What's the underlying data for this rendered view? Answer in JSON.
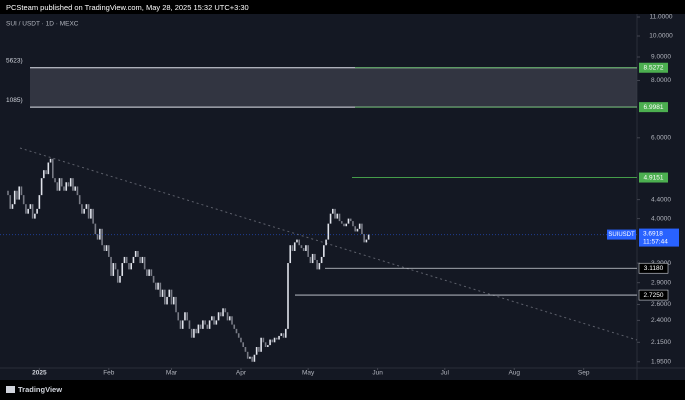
{
  "header": "PCSteam published on TradingView.com, May 28, 2025 15:32 UTC+3:30",
  "footer": "TradingView",
  "chart_data": {
    "type": "candlestick",
    "symbol_line": "SUI / USDT · 1D · MEXC",
    "start": "2024-12-18",
    "up_color": "#e0e3eb",
    "down_color": "#787b86",
    "log_scale": true,
    "ylim": [
      1.89,
      11.98
    ],
    "yticks": [
      {
        "value": 11,
        "label": "11.0000"
      },
      {
        "value": 10,
        "label": "10.0000"
      },
      {
        "value": 9,
        "label": "9.0000"
      },
      {
        "value": 8,
        "label": "8.0000"
      },
      {
        "value": 6,
        "label": "6.0000"
      },
      {
        "value": 4.4,
        "label": "4.4000"
      },
      {
        "value": 4,
        "label": "4.0000"
      },
      {
        "value": 3.2,
        "label": "3.2000"
      },
      {
        "value": 2.9,
        "label": "2.9000"
      },
      {
        "value": 2.6,
        "label": "2.6000"
      },
      {
        "value": 2.4,
        "label": "2.4000"
      },
      {
        "value": 2.15,
        "label": "2.1500"
      },
      {
        "value": 1.95,
        "label": "1.9500"
      }
    ],
    "xticks": [
      {
        "value": "2025-01-01",
        "label": "2025"
      },
      {
        "value": "2025-02-01",
        "label": "Feb"
      },
      {
        "value": "2025-03-01",
        "label": "Mar"
      },
      {
        "value": "2025-04-01",
        "label": "Apr"
      },
      {
        "value": "2025-05-01",
        "label": "May"
      },
      {
        "value": "2025-06-01",
        "label": "Jun"
      },
      {
        "value": "2025-07-01",
        "label": "Jul"
      },
      {
        "value": "2025-08-01",
        "label": "Aug"
      },
      {
        "value": "2025-09-01",
        "label": "Sep"
      }
    ],
    "open": [
      4.6,
      4.5,
      4.2,
      4.3,
      4.6,
      4.4,
      4.7,
      4.5,
      4.3,
      4.1,
      4.2,
      4.3,
      4.0,
      4.1,
      4.2,
      4.5,
      4.9,
      5.1,
      5.0,
      5.3,
      5.4,
      4.9,
      4.8,
      4.6,
      4.9,
      4.7,
      4.6,
      4.8,
      4.7,
      4.9,
      4.6,
      4.7,
      4.5,
      4.3,
      4.1,
      4.2,
      4.3,
      4.0,
      4.2,
      3.9,
      3.7,
      3.6,
      3.8,
      3.5,
      3.4,
      3.5,
      3.3,
      3.0,
      3.2,
      3.1,
      2.9,
      3.0,
      3.2,
      3.3,
      3.2,
      3.1,
      3.2,
      3.3,
      3.4,
      3.3,
      3.2,
      3.3,
      3.1,
      3.0,
      3.1,
      3.0,
      2.9,
      2.8,
      2.9,
      2.7,
      2.8,
      2.6,
      2.7,
      2.8,
      2.6,
      2.7,
      2.5,
      2.4,
      2.3,
      2.4,
      2.5,
      2.4,
      2.3,
      2.2,
      2.3,
      2.25,
      2.35,
      2.3,
      2.4,
      2.35,
      2.3,
      2.4,
      2.45,
      2.35,
      2.4,
      2.5,
      2.45,
      2.55,
      2.5,
      2.4,
      2.45,
      2.35,
      2.3,
      2.25,
      2.2,
      2.15,
      2.1,
      2.05,
      1.98,
      2.0,
      1.95,
      2.02,
      2.1,
      2.05,
      2.2,
      2.15,
      2.1,
      2.12,
      2.18,
      2.15,
      2.2,
      2.18,
      2.22,
      2.25,
      2.2,
      2.3,
      3.2,
      3.5,
      3.4,
      3.55,
      3.6,
      3.5,
      3.45,
      3.4,
      3.5,
      3.3,
      3.2,
      3.35,
      3.25,
      3.1,
      3.2,
      3.3,
      3.5,
      3.6,
      3.9,
      4.1,
      4.2,
      4.0,
      4.1,
      3.95,
      3.9,
      3.85,
      3.9,
      4.0,
      3.95,
      3.85,
      3.75,
      3.8,
      3.9,
      3.7,
      3.55,
      3.6
    ],
    "close": [
      4.5,
      4.2,
      4.3,
      4.6,
      4.4,
      4.7,
      4.5,
      4.3,
      4.1,
      4.2,
      4.3,
      4.0,
      4.1,
      4.2,
      4.5,
      4.9,
      5.1,
      5.0,
      5.3,
      5.4,
      4.9,
      4.8,
      4.6,
      4.9,
      4.7,
      4.6,
      4.8,
      4.7,
      4.9,
      4.6,
      4.7,
      4.5,
      4.3,
      4.1,
      4.2,
      4.3,
      4.0,
      4.2,
      3.9,
      3.7,
      3.6,
      3.8,
      3.5,
      3.4,
      3.5,
      3.3,
      3.0,
      3.2,
      3.1,
      2.9,
      3.0,
      3.2,
      3.3,
      3.2,
      3.1,
      3.2,
      3.3,
      3.4,
      3.3,
      3.2,
      3.3,
      3.1,
      3.0,
      3.1,
      3.0,
      2.9,
      2.8,
      2.9,
      2.7,
      2.8,
      2.6,
      2.7,
      2.8,
      2.6,
      2.7,
      2.5,
      2.4,
      2.3,
      2.4,
      2.5,
      2.4,
      2.3,
      2.2,
      2.3,
      2.25,
      2.35,
      2.3,
      2.4,
      2.35,
      2.3,
      2.4,
      2.45,
      2.35,
      2.4,
      2.5,
      2.45,
      2.55,
      2.5,
      2.4,
      2.45,
      2.35,
      2.3,
      2.25,
      2.2,
      2.15,
      2.1,
      2.05,
      1.98,
      2.0,
      1.95,
      2.02,
      2.1,
      2.05,
      2.2,
      2.15,
      2.1,
      2.12,
      2.18,
      2.15,
      2.2,
      2.18,
      2.22,
      2.25,
      2.2,
      2.3,
      3.2,
      3.5,
      3.4,
      3.55,
      3.6,
      3.5,
      3.45,
      3.4,
      3.5,
      3.3,
      3.2,
      3.35,
      3.25,
      3.1,
      3.2,
      3.3,
      3.5,
      3.6,
      3.9,
      4.1,
      4.2,
      4.0,
      4.1,
      3.95,
      3.9,
      3.85,
      3.9,
      4.0,
      3.95,
      3.85,
      3.75,
      3.8,
      3.9,
      3.7,
      3.55,
      3.6,
      3.6918
    ],
    "zone": {
      "top": 8.5272,
      "bottom": 6.9981,
      "labels": [
        "5623)",
        "1085)"
      ],
      "color": "#3a3d48"
    },
    "levels": [
      {
        "value": 8.5272,
        "color": "#4caf50",
        "label_bg": "#4caf50"
      },
      {
        "value": 6.9981,
        "color": "#4caf50",
        "label_bg": "#4caf50"
      },
      {
        "value": 4.9151,
        "color": "#4caf50",
        "label_bg": "#4caf50"
      },
      {
        "value": 3.118,
        "label": "3.1180",
        "color": "#d1d4dc",
        "label_bg": "#000000"
      },
      {
        "value": 2.725,
        "label": "2.7250",
        "color": "#d1d4dc",
        "label_bg": "#000000"
      }
    ],
    "current": {
      "symbol": "SUIUSDT",
      "label": "3.6918",
      "countdown": "11:57:44",
      "color": "#2962ff"
    }
  }
}
